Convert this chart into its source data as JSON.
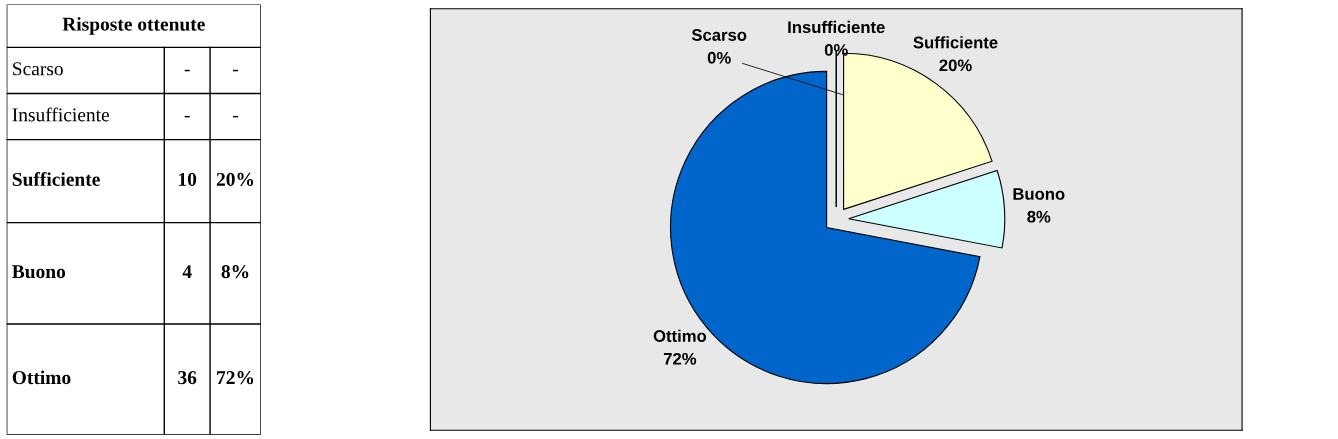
{
  "chart_data": [
    {
      "type": "other",
      "title": "Risposte ottenute",
      "annotations": [
        "Scarso",
        "-",
        "-",
        "Insufficiente",
        "-",
        "-",
        "Sufficiente",
        "10",
        "20%",
        "Buono",
        "4",
        "8%",
        "Ottimo",
        "36",
        "72%"
      ]
    },
    {
      "type": "pie",
      "categories": [
        "Scarso",
        "Insufficiente",
        "Sufficiente",
        "Buono",
        "Ottimo"
      ],
      "values": [
        0,
        0,
        20,
        8,
        72
      ],
      "colors": [
        "#9999ff",
        "#993366",
        "#ffffcc",
        "#ccffff",
        "#0066cc"
      ],
      "value_labels": [
        "0%",
        "0%",
        "20%",
        "8%",
        "72%"
      ]
    }
  ]
}
